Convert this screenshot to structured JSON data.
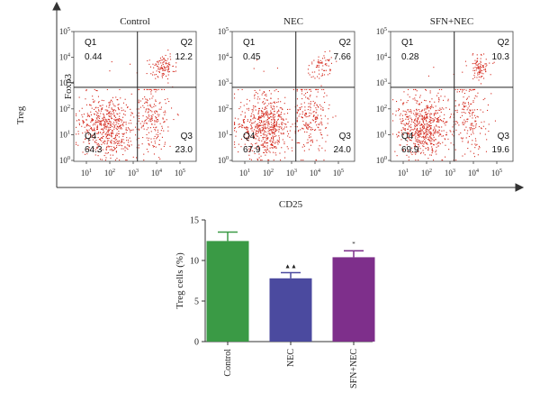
{
  "chart_data": [
    {
      "type": "scatter",
      "panels": [
        {
          "title": "Control",
          "quadrants": [
            {
              "label": "Q1",
              "value": "0.44"
            },
            {
              "label": "Q2",
              "value": "12.2"
            },
            {
              "label": "Q3",
              "value": "23.0"
            },
            {
              "label": "Q4",
              "value": "64.3"
            }
          ]
        },
        {
          "title": "NEC",
          "quadrants": [
            {
              "label": "Q1",
              "value": "0.45"
            },
            {
              "label": "Q2",
              "value": "7.66"
            },
            {
              "label": "Q3",
              "value": "24.0"
            },
            {
              "label": "Q4",
              "value": "67.9"
            }
          ]
        },
        {
          "title": "SFN+NEC",
          "quadrants": [
            {
              "label": "Q1",
              "value": "0.28"
            },
            {
              "label": "Q2",
              "value": "10.3"
            },
            {
              "label": "Q3",
              "value": "19.6"
            },
            {
              "label": "Q4",
              "value": "69.9"
            }
          ]
        }
      ],
      "xlabel": "CD25",
      "ylabel_top": "Foxp3",
      "ylabel_side": "Treg",
      "x_ticks": [
        {
          "base": "10",
          "exp": "1"
        },
        {
          "base": "10",
          "exp": "2"
        },
        {
          "base": "10",
          "exp": "3"
        },
        {
          "base": "10",
          "exp": "4"
        },
        {
          "base": "10",
          "exp": "5"
        }
      ],
      "y_ticks": [
        {
          "base": "10",
          "exp": "0"
        },
        {
          "base": "10",
          "exp": "1"
        },
        {
          "base": "10",
          "exp": "2"
        },
        {
          "base": "10",
          "exp": "3"
        },
        {
          "base": "10",
          "exp": "4"
        },
        {
          "base": "10",
          "exp": "5"
        }
      ],
      "dot_color": "#d42a1e"
    },
    {
      "type": "bar",
      "categories": [
        "Control",
        "NEC",
        "SFN+NEC"
      ],
      "values": [
        12.4,
        7.8,
        10.4
      ],
      "errors": [
        1.1,
        0.7,
        0.8
      ],
      "significance": [
        "",
        "▲▲",
        "*"
      ],
      "colors": [
        "#3a9a45",
        "#4b4a9f",
        "#7e2f8b"
      ],
      "ylabel": "Treg cells (%)",
      "ylim": [
        0,
        15
      ],
      "yticks": [
        "0",
        "5",
        "10",
        "15"
      ]
    }
  ]
}
